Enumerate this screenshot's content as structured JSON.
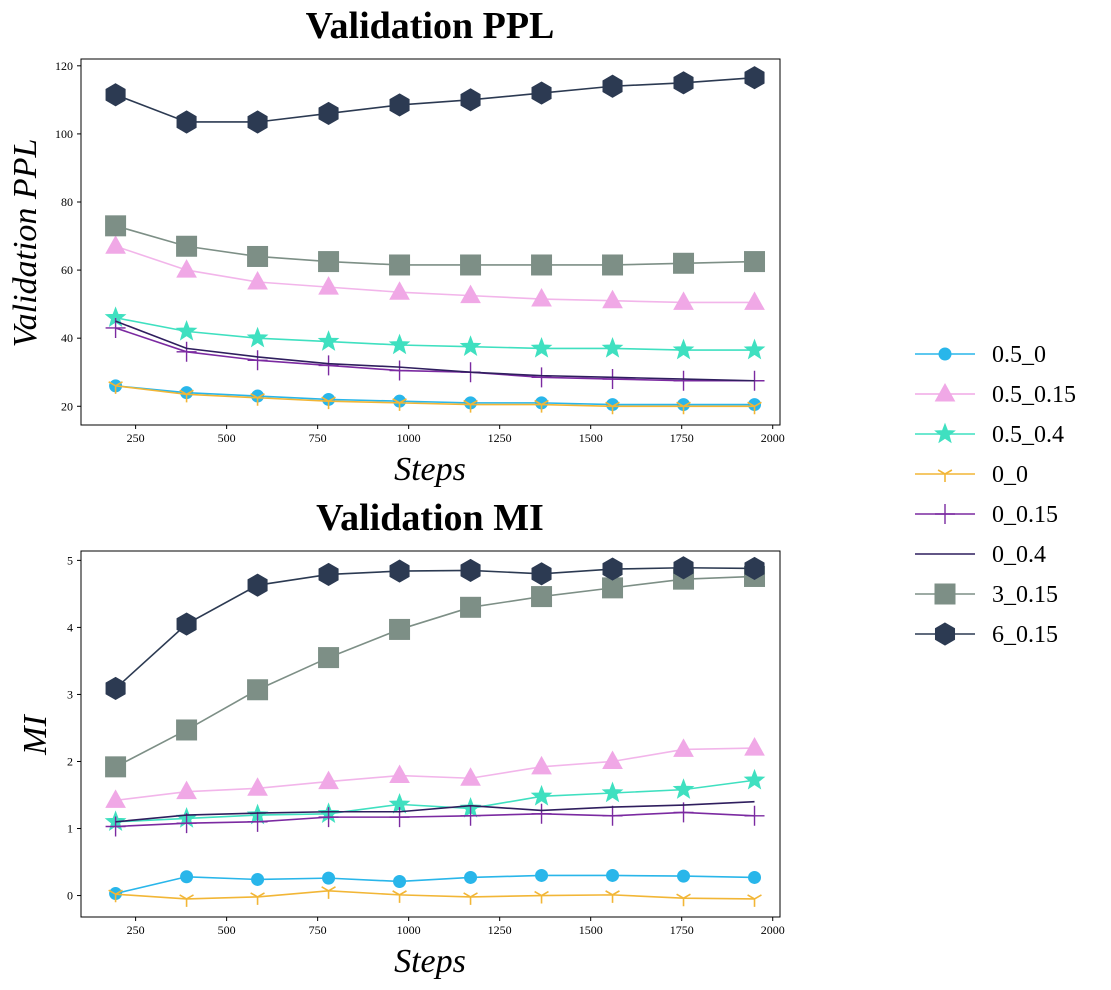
{
  "chart_data": [
    {
      "type": "line",
      "title": "Validation PPL",
      "xlabel": "Steps",
      "ylabel": "Validation PPL",
      "xlim": [
        100,
        2020
      ],
      "ylim": [
        14.5,
        122
      ],
      "xticks": [
        250,
        500,
        750,
        1000,
        1250,
        1500,
        1750,
        2000
      ],
      "yticks": [
        20,
        40,
        60,
        80,
        100,
        120
      ],
      "x": [
        195,
        390,
        585,
        780,
        975,
        1170,
        1365,
        1560,
        1755,
        1950
      ],
      "series": [
        {
          "name": "0.5_0",
          "values": [
            26,
            24,
            23,
            22,
            21.5,
            21,
            21,
            20.5,
            20.5,
            20.5
          ]
        },
        {
          "name": "0.5_0.15",
          "values": [
            67,
            60,
            56.5,
            55,
            53.5,
            52.5,
            51.5,
            51,
            50.5,
            50.5
          ]
        },
        {
          "name": "0.5_0.4",
          "values": [
            46,
            42,
            40,
            39,
            38,
            37.5,
            37,
            37,
            36.5,
            36.5
          ]
        },
        {
          "name": "0_0",
          "values": [
            26,
            23.5,
            22.5,
            21.5,
            21,
            20.5,
            20.5,
            20,
            20,
            20
          ]
        },
        {
          "name": "0_0.15",
          "values": [
            43,
            36,
            33.5,
            32,
            30.5,
            30,
            28.5,
            28,
            27.5,
            27.5
          ]
        },
        {
          "name": "0_0.4",
          "values": [
            45,
            37,
            34.5,
            32.5,
            31.5,
            30,
            29,
            28.5,
            28,
            27.5
          ]
        },
        {
          "name": "3_0.15",
          "values": [
            73,
            67,
            64,
            62.5,
            61.5,
            61.5,
            61.5,
            61.5,
            62,
            62.5
          ]
        },
        {
          "name": "6_0.15",
          "values": [
            111.5,
            103.5,
            103.5,
            106,
            108.5,
            110,
            112,
            114,
            115,
            116.5
          ]
        }
      ]
    },
    {
      "type": "line",
      "title": "Validation MI",
      "xlabel": "Steps",
      "ylabel": "MI",
      "xlim": [
        100,
        2020
      ],
      "ylim": [
        -0.32,
        5.14
      ],
      "xticks": [
        250,
        500,
        750,
        1000,
        1250,
        1500,
        1750,
        2000
      ],
      "yticks": [
        0,
        1,
        2,
        3,
        4,
        5
      ],
      "x": [
        195,
        390,
        585,
        780,
        975,
        1170,
        1365,
        1560,
        1755,
        1950
      ],
      "series": [
        {
          "name": "0.5_0",
          "values": [
            0.03,
            0.28,
            0.24,
            0.26,
            0.21,
            0.27,
            0.3,
            0.3,
            0.29,
            0.27
          ]
        },
        {
          "name": "0.5_0.15",
          "values": [
            1.42,
            1.55,
            1.6,
            1.7,
            1.79,
            1.75,
            1.92,
            2.0,
            2.18,
            2.2
          ]
        },
        {
          "name": "0.5_0.4",
          "values": [
            1.1,
            1.15,
            1.2,
            1.22,
            1.36,
            1.3,
            1.48,
            1.53,
            1.58,
            1.72
          ]
        },
        {
          "name": "0_0",
          "values": [
            0.02,
            -0.05,
            -0.02,
            0.07,
            0.01,
            -0.02,
            0.0,
            0.01,
            -0.04,
            -0.05
          ]
        },
        {
          "name": "0_0.15",
          "values": [
            1.03,
            1.08,
            1.1,
            1.17,
            1.17,
            1.19,
            1.22,
            1.19,
            1.24,
            1.19
          ]
        },
        {
          "name": "0_0.4",
          "values": [
            1.1,
            1.2,
            1.23,
            1.25,
            1.25,
            1.34,
            1.27,
            1.32,
            1.35,
            1.4
          ]
        },
        {
          "name": "3_0.15",
          "values": [
            1.92,
            2.47,
            3.07,
            3.55,
            3.97,
            4.3,
            4.46,
            4.59,
            4.72,
            4.76
          ]
        },
        {
          "name": "6_0.15",
          "values": [
            3.09,
            4.05,
            4.63,
            4.79,
            4.84,
            4.85,
            4.8,
            4.87,
            4.89,
            4.88
          ]
        }
      ]
    }
  ],
  "legend": {
    "position": "right",
    "entries": [
      {
        "label": "0.5_0",
        "color": "#29b6ea",
        "marker": "circle"
      },
      {
        "label": "0.5_0.15",
        "color": "#f0a8e6",
        "marker": "triangle"
      },
      {
        "label": "0.5_0.4",
        "color": "#3fe0c0",
        "marker": "star"
      },
      {
        "label": "0_0",
        "color": "#f2b636",
        "marker": "tristar"
      },
      {
        "label": "0_0.15",
        "color": "#7b2aa1",
        "marker": "plus"
      },
      {
        "label": "0_0.4",
        "color": "#2f1e5e",
        "marker": "none"
      },
      {
        "label": "3_0.15",
        "color": "#7d8f86",
        "marker": "square"
      },
      {
        "label": "6_0.15",
        "color": "#2c3a52",
        "marker": "hexagon"
      }
    ]
  }
}
